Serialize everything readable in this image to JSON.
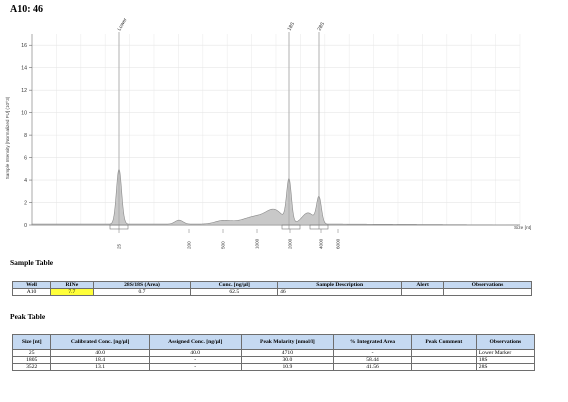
{
  "title": "A10: 46",
  "chart_data": {
    "type": "area",
    "ylabel": "Sample Intensity [Normalized FU] (10^3)",
    "xlabel": "Size [nt]",
    "ylim": [
      0,
      17
    ],
    "yticks": [
      0,
      2,
      4,
      6,
      8,
      10,
      12,
      14,
      16
    ],
    "grid": true,
    "x_axis_labels": [
      "25",
      "200",
      "500",
      "1000",
      "2000",
      "4000",
      "6000"
    ],
    "peaks": [
      {
        "label": "Lower",
        "size_nt": 25,
        "height": 4.9
      },
      {
        "label": "18S",
        "size_nt": 1805,
        "height": 3.8
      },
      {
        "label": "28S",
        "size_nt": 3522,
        "height": 2.3
      }
    ],
    "trace_points": [
      {
        "x_nt": 25,
        "y": 4.9
      },
      {
        "x_nt": 200,
        "y": 0.4
      },
      {
        "x_nt": 500,
        "y": 0.3
      },
      {
        "x_nt": 1000,
        "y": 0.8
      },
      {
        "x_nt": 1805,
        "y": 3.8
      },
      {
        "x_nt": 3522,
        "y": 2.3
      },
      {
        "x_nt": 6000,
        "y": 0.1
      }
    ]
  },
  "sample_table": {
    "heading": "Sample Table",
    "headers": [
      "Well",
      "RINe",
      "28S/18S (Area)",
      "Conc. [ng/µl]",
      "Sample Description",
      "Alert",
      "Observations"
    ],
    "rows": [
      [
        "A10",
        "7.7",
        "0.7",
        "62.5",
        "46",
        "",
        ""
      ]
    ]
  },
  "peak_table": {
    "heading": "Peak Table",
    "headers": [
      "Size [nt]",
      "Calibrated Conc. [ng/µl]",
      "Assigned Conc. [ng/µl]",
      "Peak Molarity [nmol/l]",
      "% Integrated Area",
      "Peak Comment",
      "Observations"
    ],
    "rows": [
      [
        "25",
        "40.0",
        "40.0",
        "4710",
        "-",
        "",
        "Lower Marker"
      ],
      [
        "1805",
        "18.4",
        "-",
        "30.0",
        "58.44",
        "",
        "18S"
      ],
      [
        "3522",
        "13.1",
        "-",
        "10.9",
        "41.56",
        "",
        "28S"
      ]
    ]
  },
  "colors": {
    "header_fill": "#c5d9f1",
    "rin_highlight": "#ffff3a",
    "trace_fill": "#c8c8c8"
  }
}
